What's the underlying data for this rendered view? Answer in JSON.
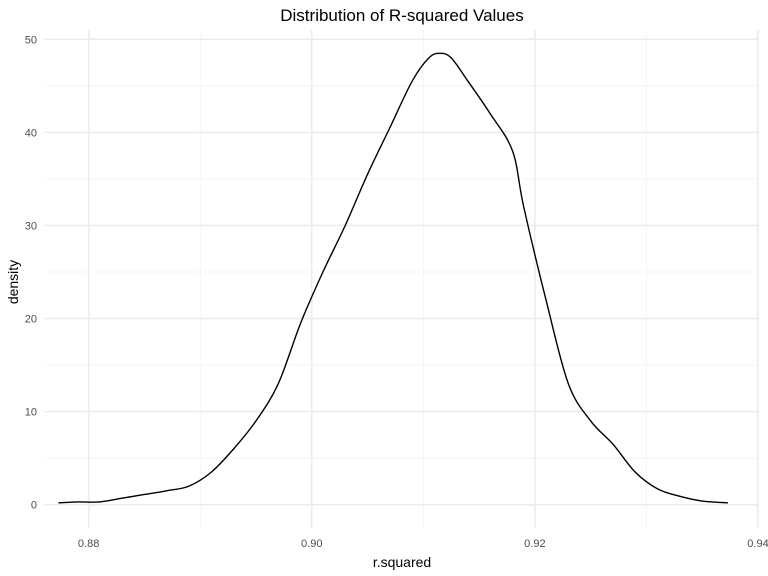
{
  "chart_data": {
    "type": "line",
    "title": "Distribution of R-squared Values",
    "xlabel": "r.squared",
    "ylabel": "density",
    "xlim": [
      0.876,
      0.94
    ],
    "ylim": [
      -2.5,
      51
    ],
    "x_ticks": [
      0.88,
      0.9,
      0.92,
      0.94
    ],
    "x_tick_labels": [
      "0.88",
      "0.90",
      "0.92",
      "0.94"
    ],
    "y_ticks": [
      0,
      10,
      20,
      30,
      40,
      50
    ],
    "y_tick_labels": [
      "0",
      "10",
      "20",
      "30",
      "40",
      "50"
    ],
    "x_minor_ticks": [
      0.89,
      0.91,
      0.93
    ],
    "y_minor_ticks": [
      5,
      15,
      25,
      35,
      45
    ],
    "grid": true,
    "line_color": "#000000",
    "grid_major_color": "#ebebeb",
    "grid_minor_color": "#f4f4f4",
    "series": [
      {
        "x": [
          0.8773,
          0.879,
          0.881,
          0.883,
          0.885,
          0.887,
          0.889,
          0.891,
          0.893,
          0.895,
          0.897,
          0.899,
          0.901,
          0.903,
          0.905,
          0.907,
          0.909,
          0.9105,
          0.9115,
          0.9125,
          0.914,
          0.916,
          0.918,
          0.919,
          0.921,
          0.923,
          0.925,
          0.927,
          0.929,
          0.931,
          0.933,
          0.935,
          0.9373
        ],
        "y": [
          0.2,
          0.3,
          0.3,
          0.7,
          1.1,
          1.5,
          2.0,
          3.5,
          6.0,
          9.0,
          13.0,
          19.5,
          25.0,
          30.0,
          35.5,
          40.5,
          45.5,
          48.0,
          48.5,
          48.0,
          45.5,
          42.0,
          38.0,
          32.0,
          22.0,
          13.0,
          9.0,
          6.5,
          3.5,
          1.7,
          0.9,
          0.4,
          0.2
        ]
      }
    ]
  }
}
